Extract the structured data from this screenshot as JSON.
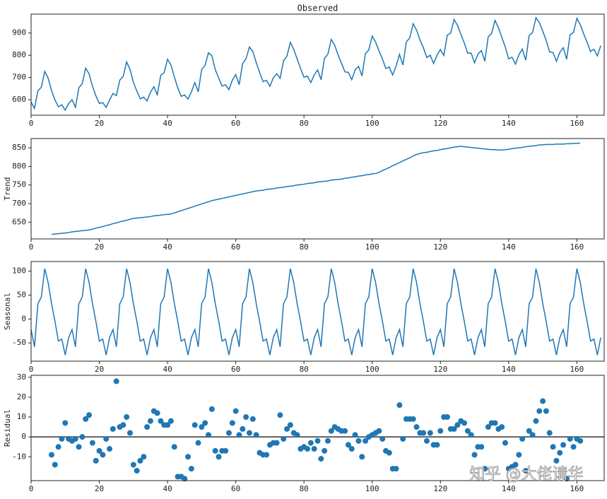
{
  "chart_data": [
    {
      "type": "line",
      "title": "Observed",
      "color": "#1f77b4",
      "x": [
        0,
        1,
        2,
        3,
        4,
        5,
        6,
        7,
        8,
        9,
        10,
        11,
        12,
        13,
        14,
        15,
        16,
        17,
        18,
        19,
        20,
        21,
        22,
        23,
        24,
        25,
        26,
        27,
        28,
        29,
        30,
        31,
        32,
        33,
        34,
        35,
        36,
        37,
        38,
        39,
        40,
        41,
        42,
        43,
        44,
        45,
        46,
        47,
        48,
        49,
        50,
        51,
        52,
        53,
        54,
        55,
        56,
        57,
        58,
        59,
        60,
        61,
        62,
        63,
        64,
        65,
        66,
        67,
        68,
        69,
        70,
        71,
        72,
        73,
        74,
        75,
        76,
        77,
        78,
        79,
        80,
        81,
        82,
        83,
        84,
        85,
        86,
        87,
        88,
        89,
        90,
        91,
        92,
        93,
        94,
        95,
        96,
        97,
        98,
        99,
        100,
        101,
        102,
        103,
        104,
        105,
        106,
        107,
        108,
        109,
        110,
        111,
        112,
        113,
        114,
        115,
        116,
        117,
        118,
        119,
        120,
        121,
        122,
        123,
        124,
        125,
        126,
        127,
        128,
        129,
        130,
        131,
        132,
        133,
        134,
        135,
        136,
        137,
        138,
        139,
        140,
        141,
        142,
        143,
        144,
        145,
        146,
        147,
        148,
        149,
        150,
        151,
        152,
        153,
        154,
        155,
        156,
        157,
        158,
        159,
        160,
        161,
        162,
        163,
        164,
        165,
        166,
        167
      ],
      "values": [
        589,
        561,
        640,
        656,
        727,
        697,
        640,
        599,
        568,
        577,
        553,
        582,
        600,
        566,
        653,
        673,
        742,
        716,
        660,
        617,
        583,
        587,
        565,
        598,
        628,
        618,
        688,
        705,
        770,
        736,
        678,
        639,
        604,
        611,
        594,
        634,
        658,
        622,
        709,
        722,
        782,
        756,
        702,
        653,
        615,
        621,
        602,
        635,
        677,
        635,
        736,
        755,
        811,
        798,
        735,
        697,
        661,
        667,
        645,
        688,
        713,
        667,
        762,
        784,
        837,
        817,
        767,
        722,
        681,
        687,
        660,
        698,
        717,
        696,
        775,
        796,
        858,
        826,
        783,
        740,
        701,
        706,
        677,
        711,
        734,
        690,
        785,
        805,
        871,
        845,
        801,
        764,
        725,
        723,
        690,
        734,
        750,
        707,
        807,
        824,
        886,
        859,
        819,
        783,
        740,
        747,
        711,
        751,
        804,
        756,
        860,
        878,
        942,
        913,
        869,
        834,
        790,
        800,
        763,
        800,
        826,
        799,
        890,
        900,
        961,
        935,
        894,
        855,
        809,
        810,
        766,
        805,
        821,
        773,
        883,
        898,
        957,
        924,
        881,
        837,
        784,
        791,
        760,
        802,
        828,
        778,
        889,
        902,
        969,
        947,
        908,
        867,
        815,
        812,
        773,
        813,
        834,
        782,
        892,
        903,
        966,
        937,
        896,
        858,
        817,
        827,
        797,
        843
      ],
      "xlim": [
        0,
        168
      ],
      "xticks": [
        0,
        20,
        40,
        60,
        80,
        100,
        120,
        140,
        160
      ],
      "ylim": [
        530,
        985
      ],
      "yticks": [
        600,
        700,
        800,
        900
      ]
    },
    {
      "type": "line",
      "ylabel": "Trend",
      "color": "#1f77b4",
      "x": [
        0,
        1,
        2,
        3,
        4,
        5,
        6,
        7,
        8,
        9,
        10,
        11,
        12,
        13,
        14,
        15,
        16,
        17,
        18,
        19,
        20,
        21,
        22,
        23,
        24,
        25,
        26,
        27,
        28,
        29,
        30,
        31,
        32,
        33,
        34,
        35,
        36,
        37,
        38,
        39,
        40,
        41,
        42,
        43,
        44,
        45,
        46,
        47,
        48,
        49,
        50,
        51,
        52,
        53,
        54,
        55,
        56,
        57,
        58,
        59,
        60,
        61,
        62,
        63,
        64,
        65,
        66,
        67,
        68,
        69,
        70,
        71,
        72,
        73,
        74,
        75,
        76,
        77,
        78,
        79,
        80,
        81,
        82,
        83,
        84,
        85,
        86,
        87,
        88,
        89,
        90,
        91,
        92,
        93,
        94,
        95,
        96,
        97,
        98,
        99,
        100,
        101,
        102,
        103,
        104,
        105,
        106,
        107,
        108,
        109,
        110,
        111,
        112,
        113,
        114,
        115,
        116,
        117,
        118,
        119,
        120,
        121,
        122,
        123,
        124,
        125,
        126,
        127,
        128,
        129,
        130,
        131,
        132,
        133,
        134,
        135,
        136,
        137,
        138,
        139,
        140,
        141,
        142,
        143,
        144,
        145,
        146,
        147,
        148,
        149,
        150,
        151,
        152,
        153,
        154,
        155,
        156,
        157,
        158,
        159,
        160,
        161,
        162,
        163,
        164,
        165,
        166,
        167
      ],
      "values": [
        null,
        null,
        null,
        null,
        null,
        null,
        617,
        618,
        619,
        620,
        621,
        622,
        624,
        625,
        626,
        627,
        628,
        629,
        631,
        634,
        636,
        638,
        641,
        643,
        646,
        648,
        651,
        653,
        655,
        658,
        660,
        661,
        662,
        663,
        664,
        665,
        667,
        668,
        669,
        670,
        671,
        672,
        675,
        678,
        681,
        684,
        687,
        690,
        693,
        696,
        699,
        702,
        705,
        708,
        710,
        712,
        714,
        716,
        718,
        720,
        722,
        724,
        726,
        728,
        730,
        732,
        734,
        735,
        736,
        738,
        739,
        740,
        742,
        743,
        744,
        746,
        747,
        748,
        750,
        751,
        752,
        754,
        755,
        756,
        758,
        759,
        760,
        761,
        763,
        764,
        765,
        766,
        768,
        769,
        771,
        772,
        774,
        775,
        777,
        778,
        780,
        781,
        784,
        789,
        793,
        797,
        802,
        806,
        810,
        815,
        819,
        823,
        828,
        832,
        835,
        837,
        838,
        840,
        842,
        843,
        845,
        847,
        848,
        850,
        852,
        853,
        854,
        853,
        852,
        851,
        850,
        849,
        848,
        847,
        846,
        845,
        845,
        844,
        844,
        845,
        846,
        848,
        849,
        850,
        851,
        853,
        854,
        855,
        856,
        858,
        858,
        859,
        859,
        859,
        860,
        860,
        860,
        861,
        861,
        862,
        862,
        863,
        null,
        null,
        null,
        null,
        null,
        null
      ],
      "xlim": [
        0,
        168
      ],
      "xticks": [
        0,
        20,
        40,
        60,
        80,
        100,
        120,
        140,
        160
      ],
      "ylim": [
        605,
        875
      ],
      "yticks": [
        650,
        700,
        750,
        800,
        850
      ]
    },
    {
      "type": "line",
      "ylabel": "Seasonal",
      "color": "#1f77b4",
      "x": [
        0,
        1,
        2,
        3,
        4,
        5,
        6,
        7,
        8,
        9,
        10,
        11,
        12,
        13,
        14,
        15,
        16,
        17,
        18,
        19,
        20,
        21,
        22,
        23,
        24,
        25,
        26,
        27,
        28,
        29,
        30,
        31,
        32,
        33,
        34,
        35,
        36,
        37,
        38,
        39,
        40,
        41,
        42,
        43,
        44,
        45,
        46,
        47,
        48,
        49,
        50,
        51,
        52,
        53,
        54,
        55,
        56,
        57,
        58,
        59,
        60,
        61,
        62,
        63,
        64,
        65,
        66,
        67,
        68,
        69,
        70,
        71,
        72,
        73,
        74,
        75,
        76,
        77,
        78,
        79,
        80,
        81,
        82,
        83,
        84,
        85,
        86,
        87,
        88,
        89,
        90,
        91,
        92,
        93,
        94,
        95,
        96,
        97,
        98,
        99,
        100,
        101,
        102,
        103,
        104,
        105,
        106,
        107,
        108,
        109,
        110,
        111,
        112,
        113,
        114,
        115,
        116,
        117,
        118,
        119,
        120,
        121,
        122,
        123,
        124,
        125,
        126,
        127,
        128,
        129,
        130,
        131,
        132,
        133,
        134,
        135,
        136,
        137,
        138,
        139,
        140,
        141,
        142,
        143,
        144,
        145,
        146,
        147,
        148,
        149,
        150,
        151,
        152,
        153,
        154,
        155,
        156,
        157,
        158,
        159,
        160,
        161,
        162,
        163,
        164,
        165,
        166,
        167
      ],
      "values": [
        -22,
        -58,
        32,
        46,
        105,
        76,
        32,
        -5,
        -46,
        -42,
        -75,
        -39,
        -22,
        -58,
        32,
        46,
        105,
        76,
        32,
        -5,
        -46,
        -42,
        -75,
        -39,
        -22,
        -58,
        32,
        46,
        105,
        76,
        32,
        -5,
        -46,
        -42,
        -75,
        -39,
        -22,
        -58,
        32,
        46,
        105,
        76,
        32,
        -5,
        -46,
        -42,
        -75,
        -39,
        -22,
        -58,
        32,
        46,
        105,
        76,
        32,
        -5,
        -46,
        -42,
        -75,
        -39,
        -22,
        -58,
        32,
        46,
        105,
        76,
        32,
        -5,
        -46,
        -42,
        -75,
        -39,
        -22,
        -58,
        32,
        46,
        105,
        76,
        32,
        -5,
        -46,
        -42,
        -75,
        -39,
        -22,
        -58,
        32,
        46,
        105,
        76,
        32,
        -5,
        -46,
        -42,
        -75,
        -39,
        -22,
        -58,
        32,
        46,
        105,
        76,
        32,
        -5,
        -46,
        -42,
        -75,
        -39,
        -22,
        -58,
        32,
        46,
        105,
        76,
        32,
        -5,
        -46,
        -42,
        -75,
        -39,
        -22,
        -58,
        32,
        46,
        105,
        76,
        32,
        -5,
        -46,
        -42,
        -75,
        -39,
        -22,
        -58,
        32,
        46,
        105,
        76,
        32,
        -5,
        -46,
        -42,
        -75,
        -39,
        -22,
        -58,
        32,
        46,
        105,
        76,
        32,
        -5,
        -46,
        -42,
        -75,
        -39,
        -22,
        -58,
        32,
        46,
        105,
        76,
        32,
        -5,
        -46,
        -42,
        -75,
        -39
      ],
      "xlim": [
        0,
        168
      ],
      "xticks": [
        0,
        20,
        40,
        60,
        80,
        100,
        120,
        140,
        160
      ],
      "ylim": [
        -88,
        120
      ],
      "yticks": [
        -50,
        0,
        50,
        100
      ]
    },
    {
      "type": "scatter",
      "ylabel": "Residual",
      "color": "#1f77b4",
      "x": [
        0,
        1,
        2,
        3,
        4,
        5,
        6,
        7,
        8,
        9,
        10,
        11,
        12,
        13,
        14,
        15,
        16,
        17,
        18,
        19,
        20,
        21,
        22,
        23,
        24,
        25,
        26,
        27,
        28,
        29,
        30,
        31,
        32,
        33,
        34,
        35,
        36,
        37,
        38,
        39,
        40,
        41,
        42,
        43,
        44,
        45,
        46,
        47,
        48,
        49,
        50,
        51,
        52,
        53,
        54,
        55,
        56,
        57,
        58,
        59,
        60,
        61,
        62,
        63,
        64,
        65,
        66,
        67,
        68,
        69,
        70,
        71,
        72,
        73,
        74,
        75,
        76,
        77,
        78,
        79,
        80,
        81,
        82,
        83,
        84,
        85,
        86,
        87,
        88,
        89,
        90,
        91,
        92,
        93,
        94,
        95,
        96,
        97,
        98,
        99,
        100,
        101,
        102,
        103,
        104,
        105,
        106,
        107,
        108,
        109,
        110,
        111,
        112,
        113,
        114,
        115,
        116,
        117,
        118,
        119,
        120,
        121,
        122,
        123,
        124,
        125,
        126,
        127,
        128,
        129,
        130,
        131,
        132,
        133,
        134,
        135,
        136,
        137,
        138,
        139,
        140,
        141,
        142,
        143,
        144,
        145,
        146,
        147,
        148,
        149,
        150,
        151,
        152,
        153,
        154,
        155,
        156,
        157,
        158,
        159,
        160,
        161,
        162,
        163,
        164,
        165,
        166,
        167
      ],
      "values": [
        null,
        null,
        null,
        null,
        null,
        null,
        -9,
        -14,
        -5,
        -1,
        7,
        -1,
        -2,
        -1,
        -5,
        0,
        9,
        11,
        -3,
        -12,
        -7,
        -9,
        -1,
        -6,
        4,
        28,
        5,
        6,
        10,
        2,
        -14,
        -17,
        -12,
        -10,
        5,
        8,
        13,
        12,
        8,
        6,
        6,
        8,
        -5,
        -20,
        -20,
        -21,
        -10,
        -16,
        6,
        -3,
        5,
        7,
        1,
        14,
        -7,
        -10,
        -7,
        -7,
        2,
        7,
        13,
        1,
        4,
        10,
        2,
        9,
        1,
        -8,
        -9,
        -9,
        -4,
        -3,
        -3,
        11,
        -1,
        4,
        6,
        2,
        1,
        -6,
        -5,
        -6,
        -3,
        -6,
        -2,
        -11,
        -7,
        -2,
        3,
        5,
        4,
        3,
        3,
        -4,
        -6,
        1,
        -2,
        -10,
        -2,
        0,
        1,
        2,
        3,
        -1,
        -7,
        -8,
        -16,
        -16,
        16,
        -1,
        9,
        9,
        9,
        5,
        2,
        2,
        -2,
        2,
        -4,
        -4,
        3,
        10,
        10,
        4,
        4,
        6,
        8,
        7,
        3,
        1,
        -9,
        -5,
        -5,
        -16,
        5,
        7,
        7,
        4,
        5,
        -3,
        -16,
        -15,
        -14,
        -9,
        -1,
        -17,
        3,
        1,
        8,
        13,
        18,
        13,
        2,
        -5,
        -12,
        -8,
        -4,
        -21,
        -1,
        -5,
        -1,
        -2,
        null,
        null,
        null,
        null,
        null,
        null
      ],
      "xlim": [
        0,
        168
      ],
      "xticks": [
        0,
        20,
        40,
        60,
        80,
        100,
        120,
        140,
        160
      ],
      "ylim": [
        -22,
        31
      ],
      "yticks": [
        -10,
        0,
        10,
        20,
        30
      ]
    }
  ],
  "watermark": "知乎 @大佬请华"
}
